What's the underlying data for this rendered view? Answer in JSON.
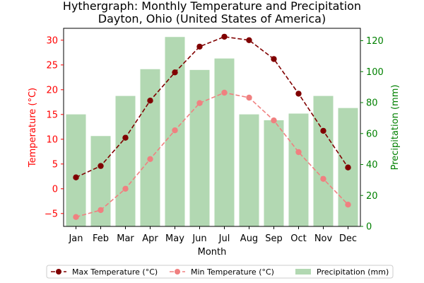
{
  "chart_data": {
    "type": "bar+line",
    "title": "Hythergraph: Monthly Temperature and Precipitation",
    "subtitle": "Dayton, Ohio (United States of America)",
    "xlabel": "Month",
    "ylabel_left": "Temperature (°C)",
    "ylabel_right": "Precipitation (mm)",
    "categories": [
      "Jan",
      "Feb",
      "Mar",
      "Apr",
      "May",
      "Jun",
      "Jul",
      "Aug",
      "Sep",
      "Oct",
      "Nov",
      "Dec"
    ],
    "ylim_left": [
      -7.6,
      32.4
    ],
    "ylim_right": [
      0,
      128
    ],
    "yticks_left": [
      -5,
      0,
      5,
      10,
      15,
      20,
      25,
      30
    ],
    "yticks_right": [
      0,
      20,
      40,
      60,
      80,
      100,
      120
    ],
    "grid": false,
    "legend_position": "bottom",
    "series": [
      {
        "name": "Max Temperature (°C)",
        "kind": "line",
        "axis": "left",
        "color": "#800000",
        "values": [
          2.3,
          4.6,
          10.3,
          17.8,
          23.5,
          28.7,
          30.7,
          30.0,
          26.2,
          19.2,
          11.7,
          4.3
        ]
      },
      {
        "name": "Min Temperature (°C)",
        "kind": "line",
        "axis": "left",
        "color": "#f08080",
        "values": [
          -5.7,
          -4.3,
          0.0,
          6.0,
          11.8,
          17.3,
          19.4,
          18.4,
          13.8,
          7.4,
          2.0,
          -3.2
        ]
      },
      {
        "name": "Precipitation (mm)",
        "kind": "bar",
        "axis": "right",
        "color": "#b2d8b2",
        "values": [
          72.4,
          58.4,
          84.3,
          101.6,
          122.4,
          101.1,
          108.5,
          72.4,
          68.6,
          72.9,
          84.3,
          76.5
        ]
      }
    ],
    "colors": {
      "left_axis": "#ff0000",
      "right_axis": "#008000"
    }
  }
}
